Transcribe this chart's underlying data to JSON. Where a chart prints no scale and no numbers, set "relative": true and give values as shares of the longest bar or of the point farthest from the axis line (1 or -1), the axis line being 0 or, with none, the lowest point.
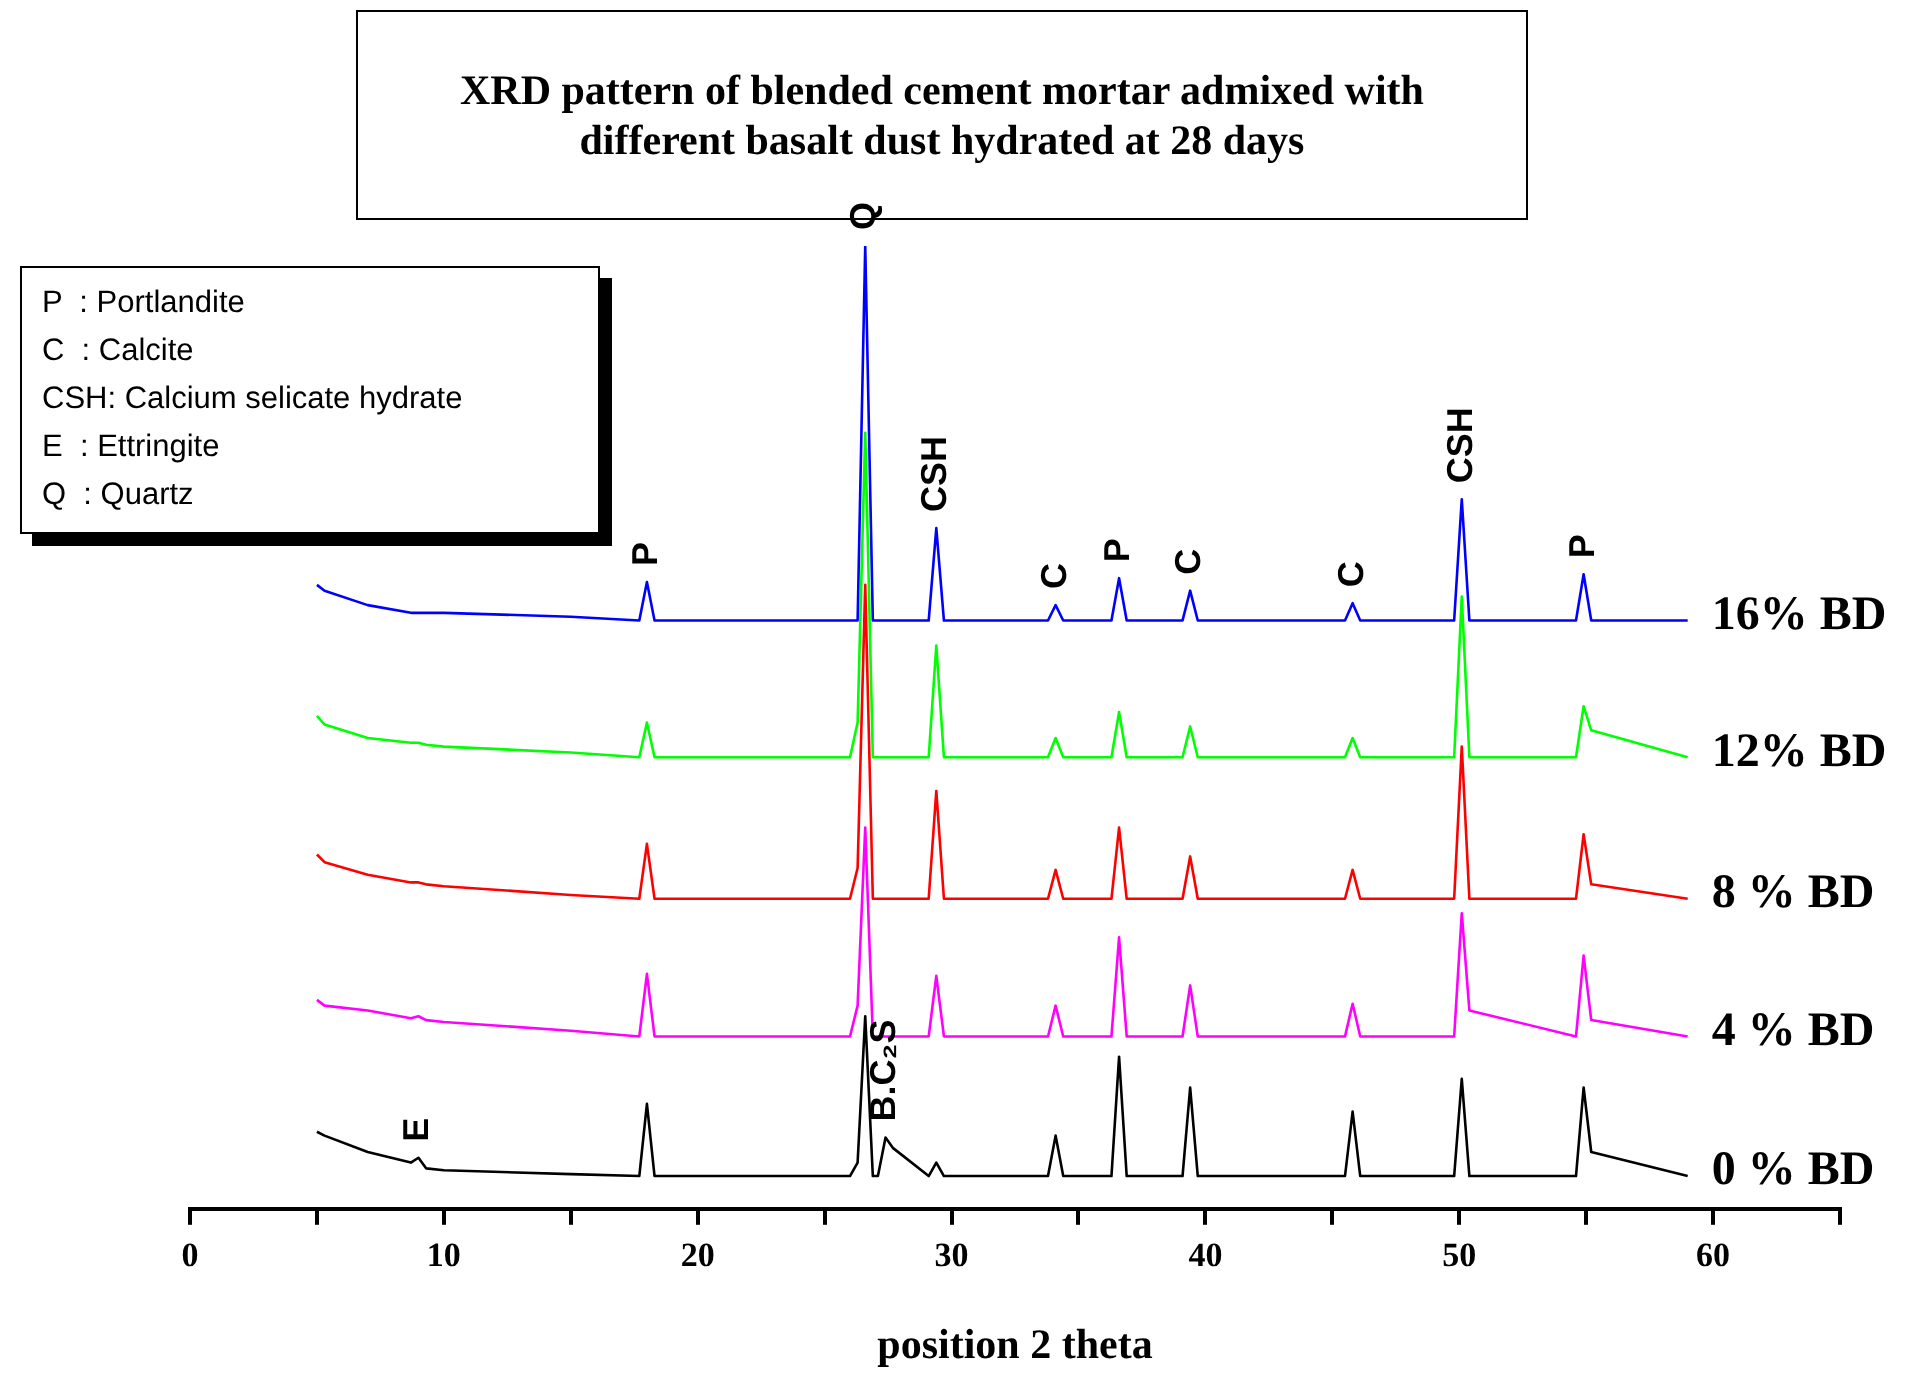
{
  "chart_data": {
    "type": "line",
    "relative": true,
    "title": "XRD pattern of blended cement mortar admixed with different basalt dust hydrated at 28 days",
    "xlabel": "position 2 theta",
    "xlim": [
      0,
      65
    ],
    "xticks": [
      0,
      {
        "value": 5,
        "label": null
      },
      10,
      {
        "value": 15,
        "label": null
      },
      20,
      {
        "value": 25,
        "label": null
      },
      30,
      {
        "value": 35,
        "label": null
      },
      40,
      {
        "value": 45,
        "label": null
      },
      50,
      {
        "value": 55,
        "label": null
      },
      60,
      {
        "value": 65,
        "label": null
      }
    ],
    "x": [
      5,
      5.3,
      7,
      8.7,
      9,
      9.3,
      10,
      15,
      17.7,
      18,
      18.3,
      26.0,
      26.3,
      26.6,
      26.9,
      27.1,
      27.4,
      27.7,
      29.1,
      29.4,
      29.7,
      33.8,
      34.1,
      34.4,
      36.3,
      36.6,
      36.9,
      39.1,
      39.4,
      39.7,
      45.5,
      45.8,
      46.1,
      49.8,
      50.1,
      50.4,
      54.6,
      54.9,
      55.2,
      59
    ],
    "series": [
      {
        "name": "16% BD",
        "color": "#0000ff",
        "values": [
          0.648,
          0.642,
          0.627,
          0.619,
          0.619,
          0.619,
          0.619,
          0.615,
          0.611,
          0.651,
          0.611,
          0.611,
          0.611,
          1,
          0.611,
          0.611,
          0.611,
          0.611,
          0.611,
          0.707,
          0.611,
          0.611,
          0.627,
          0.611,
          0.611,
          0.655,
          0.611,
          0.611,
          0.642,
          0.611,
          0.611,
          0.629,
          0.611,
          0.611,
          0.737,
          0.611,
          0.611,
          0.659,
          0.611,
          0.611
        ]
      },
      {
        "name": "12% BD",
        "color": "#00ff00",
        "values": [
          0.512,
          0.503,
          0.489,
          0.484,
          0.484,
          0.482,
          0.48,
          0.474,
          0.469,
          0.505,
          0.469,
          0.469,
          0.505,
          0.806,
          0.469,
          0.469,
          0.469,
          0.469,
          0.469,
          0.585,
          0.469,
          0.469,
          0.489,
          0.469,
          0.469,
          0.516,
          0.469,
          0.469,
          0.501,
          0.469,
          0.469,
          0.489,
          0.469,
          0.469,
          0.636,
          0.469,
          0.469,
          0.522,
          0.497,
          0.469
        ]
      },
      {
        "name": "8 % BD",
        "color": "#ff0000",
        "values": [
          0.368,
          0.36,
          0.347,
          0.339,
          0.339,
          0.337,
          0.335,
          0.326,
          0.322,
          0.379,
          0.322,
          0.322,
          0.354,
          0.648,
          0.322,
          0.322,
          0.322,
          0.322,
          0.322,
          0.434,
          0.322,
          0.322,
          0.352,
          0.322,
          0.322,
          0.396,
          0.322,
          0.322,
          0.366,
          0.322,
          0.322,
          0.352,
          0.322,
          0.322,
          0.48,
          0.322,
          0.322,
          0.389,
          0.337,
          0.322
        ]
      },
      {
        "name": "4 % BD",
        "color": "#ff00ff",
        "values": [
          0.217,
          0.211,
          0.206,
          0.198,
          0.2,
          0.196,
          0.194,
          0.185,
          0.179,
          0.244,
          0.179,
          0.179,
          0.211,
          0.396,
          0.179,
          0.179,
          0.179,
          0.179,
          0.179,
          0.242,
          0.179,
          0.179,
          0.211,
          0.179,
          0.179,
          0.282,
          0.179,
          0.179,
          0.232,
          0.179,
          0.179,
          0.213,
          0.179,
          0.179,
          0.307,
          0.206,
          0.179,
          0.263,
          0.196,
          0.179
        ]
      },
      {
        "name": "0 % BD",
        "color": "#000000",
        "values": [
          0.08,
          0.076,
          0.059,
          0.048,
          0.053,
          0.042,
          0.04,
          0.036,
          0.034,
          0.109,
          0.034,
          0.034,
          0.048,
          0.2,
          0.034,
          0.034,
          0.074,
          0.063,
          0.034,
          0.048,
          0.034,
          0.034,
          0.076,
          0.034,
          0.034,
          0.158,
          0.034,
          0.034,
          0.126,
          0.034,
          0.034,
          0.101,
          0.034,
          0.034,
          0.135,
          0.034,
          0.034,
          0.126,
          0.059,
          0.034
        ]
      }
    ],
    "annotations": [
      "P  : Portlandite",
      "C  : Calcite",
      "CSH: Calcium selicate hydrate",
      "E  : Ettringite",
      "Q  : Quartz",
      {
        "text": "P",
        "x": 18,
        "y": 0.651
      },
      {
        "text": "Q",
        "x": 26.6,
        "y": 1
      },
      {
        "text": "CSH",
        "x": 29.4,
        "y": 0.707
      },
      {
        "text": "C",
        "x": 34.1,
        "y": 0.627
      },
      {
        "text": "P",
        "x": 36.6,
        "y": 0.655
      },
      {
        "text": "C",
        "x": 39.4,
        "y": 0.642
      },
      {
        "text": "C",
        "x": 45.8,
        "y": 0.629
      },
      {
        "text": "CSH",
        "x": 50.1,
        "y": 0.737
      },
      {
        "text": "P",
        "x": 54.9,
        "y": 0.659
      },
      {
        "text": "E",
        "x": 9,
        "y": 0.053
      },
      {
        "text": "B.C₂S",
        "x": 27.4,
        "y": 0.074
      }
    ]
  }
}
